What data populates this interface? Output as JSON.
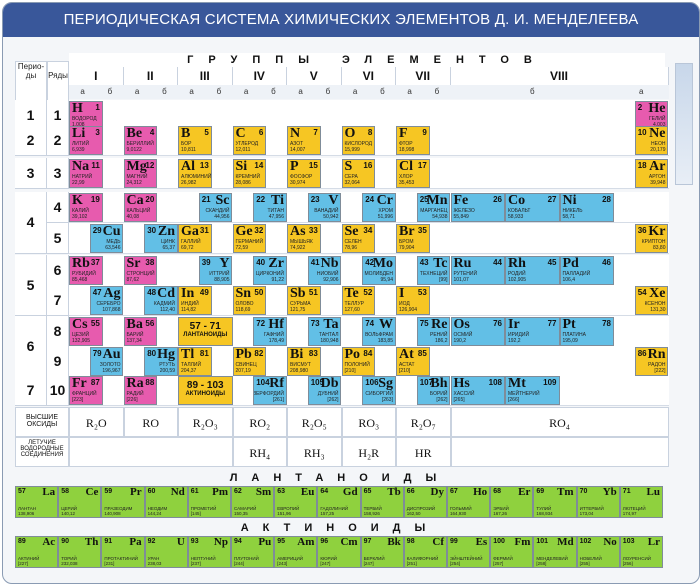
{
  "title": "ПЕРИОДИЧЕСКАЯ СИСТЕМА ХИМИЧЕСКИХ ЭЛЕМЕНТОВ Д. И. МЕНДЕЛЕЕВА",
  "headers": {
    "periods": "Перио-ды",
    "rows": "Ряды",
    "groups": "ГРУППЫ ЭЛЕМЕНТОВ",
    "group_numerals": [
      "I",
      "II",
      "III",
      "IV",
      "V",
      "VI",
      "VII",
      "VIII"
    ],
    "sub_a": "а",
    "sub_b": "б"
  },
  "period_labels": [
    "1",
    "2",
    "3",
    "4",
    "5",
    "6",
    "7"
  ],
  "row_labels": [
    "1",
    "2",
    "3",
    "4",
    "5",
    "6",
    "7",
    "8",
    "9",
    "10"
  ],
  "colors": {
    "s": "#e75bae",
    "p": "#f6c623",
    "d": "#62bfe6",
    "f": "#8fd13e",
    "header": "#39579a"
  },
  "elements": [
    {
      "sym": "H",
      "num": "1",
      "name": "ВОДОРОД",
      "mass": "1,008",
      "type": "s"
    },
    {
      "sym": "He",
      "num": "2",
      "name": "ГЕЛИЙ",
      "mass": "4,003",
      "type": "s"
    },
    {
      "sym": "Li",
      "num": "3",
      "name": "ЛИТИЙ",
      "mass": "6,939",
      "type": "s"
    },
    {
      "sym": "Be",
      "num": "4",
      "name": "БЕРИЛЛИЙ",
      "mass": "9,0122",
      "type": "s"
    },
    {
      "sym": "B",
      "num": "5",
      "name": "БОР",
      "mass": "10,811",
      "type": "p"
    },
    {
      "sym": "C",
      "num": "6",
      "name": "УГЛЕРОД",
      "mass": "12,011",
      "type": "p"
    },
    {
      "sym": "N",
      "num": "7",
      "name": "АЗОТ",
      "mass": "14,007",
      "type": "p"
    },
    {
      "sym": "O",
      "num": "8",
      "name": "КИСЛОРОД",
      "mass": "15,999",
      "type": "p"
    },
    {
      "sym": "F",
      "num": "9",
      "name": "ФТОР",
      "mass": "18,998",
      "type": "p"
    },
    {
      "sym": "Ne",
      "num": "10",
      "name": "НЕОН",
      "mass": "20,179",
      "type": "p"
    },
    {
      "sym": "Na",
      "num": "11",
      "name": "НАТРИЙ",
      "mass": "22,99",
      "type": "s"
    },
    {
      "sym": "Mg",
      "num": "12",
      "name": "МАГНИЙ",
      "mass": "24,312",
      "type": "s"
    },
    {
      "sym": "Al",
      "num": "13",
      "name": "АЛЮМИНИЙ",
      "mass": "26,982",
      "type": "p"
    },
    {
      "sym": "Si",
      "num": "14",
      "name": "КРЕМНИЙ",
      "mass": "28,086",
      "type": "p"
    },
    {
      "sym": "P",
      "num": "15",
      "name": "ФОСФОР",
      "mass": "30,974",
      "type": "p"
    },
    {
      "sym": "S",
      "num": "16",
      "name": "СЕРА",
      "mass": "32,064",
      "type": "p"
    },
    {
      "sym": "Cl",
      "num": "17",
      "name": "ХЛОР",
      "mass": "35,453",
      "type": "p"
    },
    {
      "sym": "Ar",
      "num": "18",
      "name": "АРГОН",
      "mass": "39,948",
      "type": "p"
    },
    {
      "sym": "K",
      "num": "19",
      "name": "КАЛИЙ",
      "mass": "39,102",
      "type": "s"
    },
    {
      "sym": "Ca",
      "num": "20",
      "name": "КАЛЬЦИЙ",
      "mass": "40,08",
      "type": "s"
    },
    {
      "sym": "Sc",
      "num": "21",
      "name": "СКАНДИЙ",
      "mass": "44,956",
      "type": "d"
    },
    {
      "sym": "Ti",
      "num": "22",
      "name": "ТИТАН",
      "mass": "47,956",
      "type": "d"
    },
    {
      "sym": "V",
      "num": "23",
      "name": "ВАНАДИЙ",
      "mass": "50,942",
      "type": "d"
    },
    {
      "sym": "Cr",
      "num": "24",
      "name": "ХРОМ",
      "mass": "51,996",
      "type": "d"
    },
    {
      "sym": "Mn",
      "num": "25",
      "name": "МАРГАНЕЦ",
      "mass": "54,938",
      "type": "d"
    },
    {
      "sym": "Fe",
      "num": "26",
      "name": "ЖЕЛЕЗО",
      "mass": "55,849",
      "type": "d"
    },
    {
      "sym": "Co",
      "num": "27",
      "name": "КОБАЛЬТ",
      "mass": "58,933",
      "type": "d"
    },
    {
      "sym": "Ni",
      "num": "28",
      "name": "НИКЕЛЬ",
      "mass": "58,71",
      "type": "d"
    },
    {
      "sym": "Cu",
      "num": "29",
      "name": "МЕДЬ",
      "mass": "63,546",
      "type": "d"
    },
    {
      "sym": "Zn",
      "num": "30",
      "name": "ЦИНК",
      "mass": "65,37",
      "type": "d"
    },
    {
      "sym": "Ga",
      "num": "31",
      "name": "ГАЛЛИЙ",
      "mass": "69,72",
      "type": "p"
    },
    {
      "sym": "Ge",
      "num": "32",
      "name": "ГЕРМАНИЙ",
      "mass": "72,59",
      "type": "p"
    },
    {
      "sym": "As",
      "num": "33",
      "name": "МЫШЬЯК",
      "mass": "74,922",
      "type": "p"
    },
    {
      "sym": "Se",
      "num": "34",
      "name": "СЕЛЕН",
      "mass": "78,96",
      "type": "p"
    },
    {
      "sym": "Br",
      "num": "35",
      "name": "БРОМ",
      "mass": "79,904",
      "type": "p"
    },
    {
      "sym": "Kr",
      "num": "36",
      "name": "КРИПТОН",
      "mass": "83,80",
      "type": "p"
    },
    {
      "sym": "Rb",
      "num": "37",
      "name": "РУБИДИЙ",
      "mass": "85,468",
      "type": "s"
    },
    {
      "sym": "Sr",
      "num": "38",
      "name": "СТРОНЦИЙ",
      "mass": "87,62",
      "type": "s"
    },
    {
      "sym": "Y",
      "num": "39",
      "name": "ИТТРИЙ",
      "mass": "88,905",
      "type": "d"
    },
    {
      "sym": "Zr",
      "num": "40",
      "name": "ЦИРКОНИЙ",
      "mass": "91,22",
      "type": "d"
    },
    {
      "sym": "Nb",
      "num": "41",
      "name": "НИОБИЙ",
      "mass": "92,906",
      "type": "d"
    },
    {
      "sym": "Mo",
      "num": "42",
      "name": "МОЛИБДЕН",
      "mass": "95,94",
      "type": "d"
    },
    {
      "sym": "Tc",
      "num": "43",
      "name": "ТЕХНЕЦИЙ",
      "mass": "[99]",
      "type": "d"
    },
    {
      "sym": "Ru",
      "num": "44",
      "name": "РУТЕНИЙ",
      "mass": "101,07",
      "type": "d"
    },
    {
      "sym": "Rh",
      "num": "45",
      "name": "РОДИЙ",
      "mass": "102,905",
      "type": "d"
    },
    {
      "sym": "Pd",
      "num": "46",
      "name": "ПАЛЛАДИЙ",
      "mass": "106,4",
      "type": "d"
    },
    {
      "sym": "Ag",
      "num": "47",
      "name": "СЕРЕБРО",
      "mass": "107,868",
      "type": "d"
    },
    {
      "sym": "Cd",
      "num": "48",
      "name": "КАДМИЙ",
      "mass": "112,40",
      "type": "d"
    },
    {
      "sym": "In",
      "num": "49",
      "name": "ИНДИЙ",
      "mass": "114,82",
      "type": "p"
    },
    {
      "sym": "Sn",
      "num": "50",
      "name": "ОЛОВО",
      "mass": "118,69",
      "type": "p"
    },
    {
      "sym": "Sb",
      "num": "51",
      "name": "СУРЬМА",
      "mass": "121,75",
      "type": "p"
    },
    {
      "sym": "Te",
      "num": "52",
      "name": "ТЕЛЛУР",
      "mass": "127,60",
      "type": "p"
    },
    {
      "sym": "I",
      "num": "53",
      "name": "ИОД",
      "mass": "126,904",
      "type": "p"
    },
    {
      "sym": "Xe",
      "num": "54",
      "name": "КСЕНОН",
      "mass": "131,30",
      "type": "p"
    },
    {
      "sym": "Cs",
      "num": "55",
      "name": "ЦЕЗИЙ",
      "mass": "132,905",
      "type": "s"
    },
    {
      "sym": "Ba",
      "num": "56",
      "name": "БАРИЙ",
      "mass": "137,34",
      "type": "s"
    },
    {
      "sym": "Hf",
      "num": "72",
      "name": "ГАФНИЙ",
      "mass": "178,49",
      "type": "d"
    },
    {
      "sym": "Ta",
      "num": "73",
      "name": "ТАНТАЛ",
      "mass": "180,948",
      "type": "d"
    },
    {
      "sym": "W",
      "num": "74",
      "name": "ВОЛЬФРАМ",
      "mass": "183,85",
      "type": "d"
    },
    {
      "sym": "Re",
      "num": "75",
      "name": "РЕНИЙ",
      "mass": "186,2",
      "type": "d"
    },
    {
      "sym": "Os",
      "num": "76",
      "name": "ОСМИЙ",
      "mass": "190,2",
      "type": "d"
    },
    {
      "sym": "Ir",
      "num": "77",
      "name": "ИРИДИЙ",
      "mass": "192,2",
      "type": "d"
    },
    {
      "sym": "Pt",
      "num": "78",
      "name": "ПЛАТИНА",
      "mass": "195,09",
      "type": "d"
    },
    {
      "sym": "Au",
      "num": "79",
      "name": "ЗОЛОТО",
      "mass": "196,967",
      "type": "d"
    },
    {
      "sym": "Hg",
      "num": "80",
      "name": "РТУТЬ",
      "mass": "200,59",
      "type": "d"
    },
    {
      "sym": "Tl",
      "num": "81",
      "name": "ТАЛЛИЙ",
      "mass": "204,37",
      "type": "p"
    },
    {
      "sym": "Pb",
      "num": "82",
      "name": "СВИНЕЦ",
      "mass": "207,19",
      "type": "p"
    },
    {
      "sym": "Bi",
      "num": "83",
      "name": "ВИСМУТ",
      "mass": "208,980",
      "type": "p"
    },
    {
      "sym": "Po",
      "num": "84",
      "name": "ПОЛОНИЙ",
      "mass": "[210]",
      "type": "p"
    },
    {
      "sym": "At",
      "num": "85",
      "name": "АСТАТ",
      "mass": "[210]",
      "type": "p"
    },
    {
      "sym": "Rn",
      "num": "86",
      "name": "РАДОН",
      "mass": "[222]",
      "type": "p"
    },
    {
      "sym": "Fr",
      "num": "87",
      "name": "ФРАНЦИЙ",
      "mass": "[223]",
      "type": "s"
    },
    {
      "sym": "Ra",
      "num": "88",
      "name": "РАДИЙ",
      "mass": "[226]",
      "type": "s"
    },
    {
      "sym": "Rf",
      "num": "104",
      "name": "РЕЗЕРФОРДИЙ",
      "mass": "[261]",
      "type": "d"
    },
    {
      "sym": "Db",
      "num": "105",
      "name": "ДУБНИЙ",
      "mass": "[262]",
      "type": "d"
    },
    {
      "sym": "Sg",
      "num": "106",
      "name": "СИБОРГИЙ",
      "mass": "[263]",
      "type": "d"
    },
    {
      "sym": "Bh",
      "num": "107",
      "name": "БОРИЙ",
      "mass": "[262]",
      "type": "d"
    },
    {
      "sym": "Hs",
      "num": "108",
      "name": "ХАССИЙ",
      "mass": "[265]",
      "type": "d"
    },
    {
      "sym": "Mt",
      "num": "109",
      "name": "МЕЙТНЕРИЙ",
      "mass": "[266]",
      "type": "d"
    }
  ],
  "placeholders": [
    {
      "range": "57 - 71",
      "label": "ЛАНТАНОИДЫ"
    },
    {
      "range": "89 - 103",
      "label": "АКТИНОИДЫ"
    }
  ],
  "oxides_label": "ВЫСШИЕ ОКСИДЫ",
  "hydrides_label": "ЛЕТУЧИЕ ВОДОРОДНЫЕ СОЕДИНЕНИЯ",
  "oxides": [
    "R₂O",
    "RO",
    "R₂O₃",
    "RO₂",
    "R₂O₅",
    "RO₃",
    "R₂O₇",
    "RO₄"
  ],
  "hydrides": [
    "RH₄",
    "RH₃",
    "H₂R",
    "HR"
  ],
  "lanthanides_title": "ЛАНТАНОИДЫ",
  "actinides_title": "АКТИНОИДЫ",
  "lanthanides": [
    {
      "sym": "La",
      "num": "57",
      "name": "ЛАНТАН",
      "mass": "138,906"
    },
    {
      "sym": "Ce",
      "num": "58",
      "name": "ЦЕРИЙ",
      "mass": "140,12"
    },
    {
      "sym": "Pr",
      "num": "59",
      "name": "ПРАЗЕОДИМ",
      "mass": "140,908"
    },
    {
      "sym": "Nd",
      "num": "60",
      "name": "НЕОДИМ",
      "mass": "144,24"
    },
    {
      "sym": "Pm",
      "num": "61",
      "name": "ПРОМЕТИЙ",
      "mass": "[145]"
    },
    {
      "sym": "Sm",
      "num": "62",
      "name": "САМАРИЙ",
      "mass": "150,35"
    },
    {
      "sym": "Eu",
      "num": "63",
      "name": "ЕВРОПИЙ",
      "mass": "151,96"
    },
    {
      "sym": "Gd",
      "num": "64",
      "name": "ГАДОЛИНИЙ",
      "mass": "157,25"
    },
    {
      "sym": "Tb",
      "num": "65",
      "name": "ТЕРБИЙ",
      "mass": "158,926"
    },
    {
      "sym": "Dy",
      "num": "66",
      "name": "ДИСПРОЗИЙ",
      "mass": "162,50"
    },
    {
      "sym": "Ho",
      "num": "67",
      "name": "ГОЛЬМИЙ",
      "mass": "164,930"
    },
    {
      "sym": "Er",
      "num": "68",
      "name": "ЭРБИЙ",
      "mass": "167,26"
    },
    {
      "sym": "Tm",
      "num": "69",
      "name": "ТУЛИЙ",
      "mass": "168,934"
    },
    {
      "sym": "Yb",
      "num": "70",
      "name": "ИТТЕРБИЙ",
      "mass": "173,04"
    },
    {
      "sym": "Lu",
      "num": "71",
      "name": "ЛЮТЕЦИЙ",
      "mass": "174,97"
    }
  ],
  "actinides": [
    {
      "sym": "Ac",
      "num": "89",
      "name": "АКТИНИЙ",
      "mass": "[227]"
    },
    {
      "sym": "Th",
      "num": "90",
      "name": "ТОРИЙ",
      "mass": "232,038"
    },
    {
      "sym": "Pa",
      "num": "91",
      "name": "ПРОТАКТИНИЙ",
      "mass": "[231]"
    },
    {
      "sym": "U",
      "num": "92",
      "name": "УРАН",
      "mass": "238,03"
    },
    {
      "sym": "Np",
      "num": "93",
      "name": "НЕПТУНИЙ",
      "mass": "[237]"
    },
    {
      "sym": "Pu",
      "num": "94",
      "name": "ПЛУТОНИЙ",
      "mass": "[244]"
    },
    {
      "sym": "Am",
      "num": "95",
      "name": "АМЕРИЦИЙ",
      "mass": "[243]"
    },
    {
      "sym": "Cm",
      "num": "96",
      "name": "КЮРИЙ",
      "mass": "[247]"
    },
    {
      "sym": "Bk",
      "num": "97",
      "name": "БЕРКЛИЙ",
      "mass": "[247]"
    },
    {
      "sym": "Cf",
      "num": "98",
      "name": "КАЛИФОРНИЙ",
      "mass": "[251]"
    },
    {
      "sym": "Es",
      "num": "99",
      "name": "ЭЙНШТЕЙНИЙ",
      "mass": "[254]"
    },
    {
      "sym": "Fm",
      "num": "100",
      "name": "ФЕРМИЙ",
      "mass": "[257]"
    },
    {
      "sym": "Md",
      "num": "101",
      "name": "МЕНДЕЛЕВИЙ",
      "mass": "[258]"
    },
    {
      "sym": "No",
      "num": "102",
      "name": "НОБЕЛИЙ",
      "mass": "[255]"
    },
    {
      "sym": "Lr",
      "num": "103",
      "name": "ЛОУРЕНСИЙ",
      "mass": "[256]"
    }
  ]
}
